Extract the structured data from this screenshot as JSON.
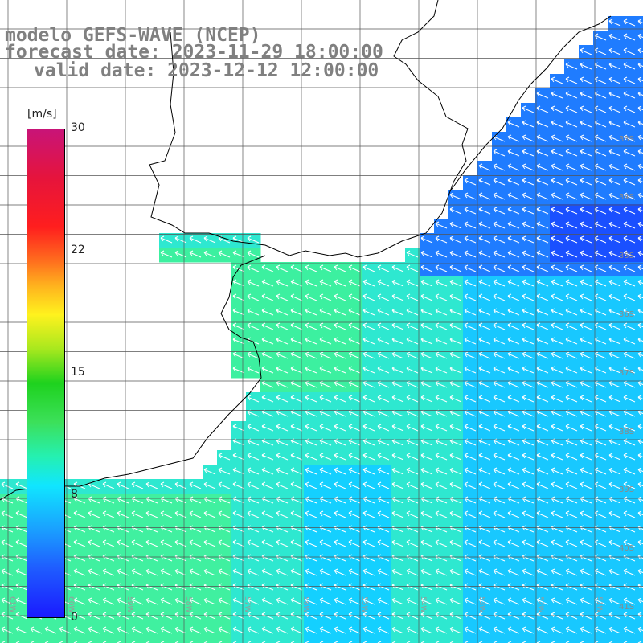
{
  "title": {
    "line1": "modelo GEFS-WAVE (NCEP)",
    "line2": "forecast date: 2023-11-29 18:00:00",
    "line3": "valid date: 2023-12-12 12:00:00"
  },
  "colorbar": {
    "units": "[m/s]",
    "ticks": [
      "30",
      "22",
      "15",
      "8",
      "0"
    ],
    "colors": [
      "#1a1aff",
      "#1aa0ff",
      "#10e6ff",
      "#3ce05a",
      "#fff21e",
      "#ff1e1e",
      "#c81478"
    ]
  },
  "lon_labels": [
    "61W",
    "60W",
    "59W",
    "58W",
    "57W",
    "56W",
    "55W",
    "54W",
    "53W",
    "52W",
    "51W"
  ],
  "lat_labels": [
    "33S",
    "34S",
    "35S",
    "36S",
    "37S",
    "38S",
    "39S",
    "40S",
    "41S"
  ],
  "colors": {
    "land": "#ffffff",
    "coastline": "#000000",
    "grid": "#555555",
    "arrows": "#ffffff"
  }
}
